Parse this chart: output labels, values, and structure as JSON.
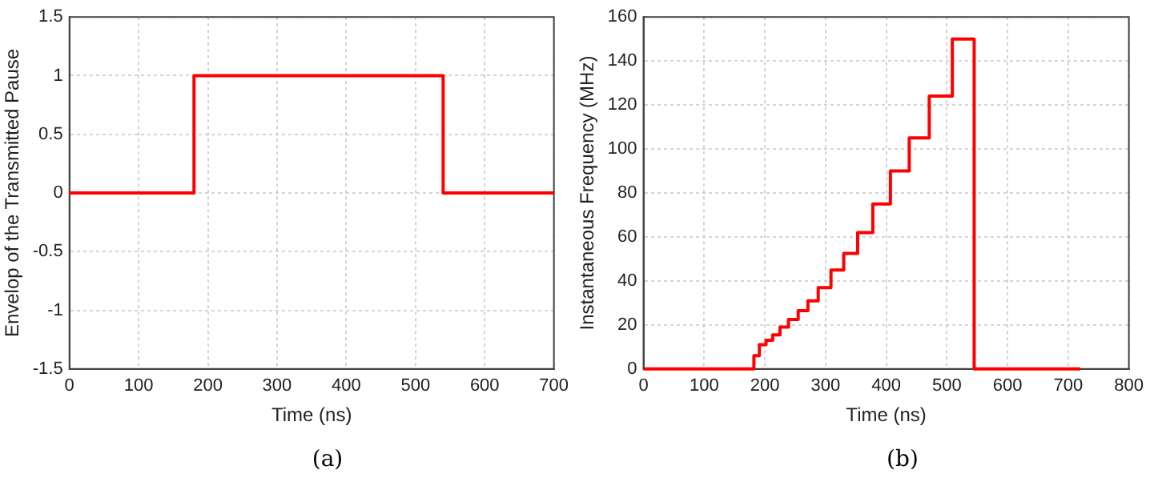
{
  "chart_data": [
    {
      "type": "step",
      "xlabel": "Time (ns)",
      "ylabel": "Envelop of the Transmitted Pause",
      "annotations": [
        "(a)"
      ],
      "grid": true,
      "xlim": [
        0,
        700
      ],
      "xticks": [
        0,
        100,
        200,
        300,
        400,
        500,
        600,
        700
      ],
      "ylim": [
        -1.5,
        1.5
      ],
      "yticks": [
        -1.5,
        -1,
        -0.5,
        0,
        0.5,
        1,
        1.5
      ],
      "series": [
        {
          "color": "#ff0000",
          "x": [
            0,
            180,
            540,
            700
          ],
          "values": [
            0,
            1,
            0,
            0
          ]
        }
      ]
    },
    {
      "type": "step",
      "xlabel": "Time (ns)",
      "ylabel": "Instantaneous Frequency (MHz)",
      "annotations": [
        "(b)"
      ],
      "grid": true,
      "xlim": [
        0,
        800
      ],
      "xticks": [
        0,
        100,
        200,
        300,
        400,
        500,
        600,
        700,
        800
      ],
      "ylim": [
        0,
        160
      ],
      "yticks": [
        0,
        20,
        40,
        60,
        80,
        100,
        120,
        140,
        160
      ],
      "series": [
        {
          "color": "#ff0000",
          "x": [
            0,
            182,
            191,
            202,
            213,
            225,
            239,
            255,
            271,
            288,
            309,
            330,
            353,
            378,
            407,
            438,
            471,
            509,
            545,
            720
          ],
          "values": [
            0,
            6,
            11,
            13,
            15.5,
            19,
            22.5,
            26.5,
            31,
            37,
            45,
            52.5,
            62,
            75,
            90,
            105,
            124,
            150,
            0,
            0
          ]
        }
      ]
    }
  ]
}
